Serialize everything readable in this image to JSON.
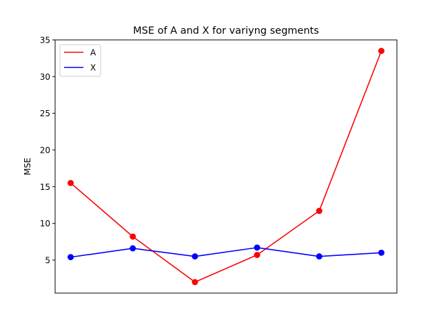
{
  "chart_data": {
    "type": "line",
    "title": "MSE of A and X for variyng segments",
    "xlabel": "",
    "ylabel": "MSE",
    "x": [
      1,
      2,
      3,
      4,
      5,
      6
    ],
    "xlim": [
      0.75,
      6.25
    ],
    "ylim": [
      0.5,
      35
    ],
    "yticks": [
      5,
      10,
      15,
      20,
      25,
      30,
      35
    ],
    "ytick_labels": [
      "5",
      "10",
      "15",
      "20",
      "25",
      "30",
      "35"
    ],
    "grid": false,
    "legend_position": "top-left",
    "series": [
      {
        "name": "A",
        "color": "#ff0000",
        "values": [
          15.5,
          8.2,
          2.0,
          5.7,
          11.7,
          33.5
        ]
      },
      {
        "name": "X",
        "color": "#0000ff",
        "values": [
          5.4,
          6.6,
          5.5,
          6.7,
          5.5,
          6.0
        ]
      }
    ]
  }
}
